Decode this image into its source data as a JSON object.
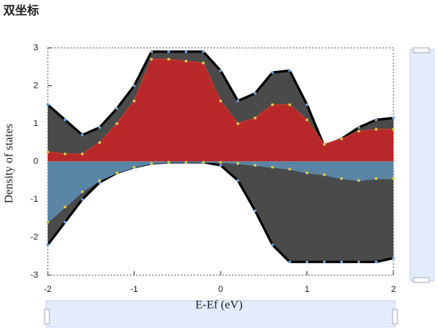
{
  "chart_data": {
    "type": "area",
    "title": "双坐标",
    "x_label": "E-Ef (eV)",
    "y_label": "Density of states",
    "x": [
      -2,
      -1.8,
      -1.6,
      -1.4,
      -1.2,
      -1,
      -0.8,
      -0.6,
      -0.4,
      -0.2,
      0,
      0.2,
      0.4,
      0.6,
      0.8,
      1,
      1.2,
      1.4,
      1.6,
      1.8,
      2
    ],
    "series": [
      {
        "color": "#4a4a4a",
        "line_color": "#000000",
        "marker_color": "#6f9fd8",
        "values": [
          1.5,
          1.1,
          0.7,
          0.9,
          1.4,
          2.0,
          2.9,
          2.9,
          2.9,
          2.9,
          2.4,
          1.6,
          1.8,
          2.35,
          2.4,
          1.5,
          0.4,
          0.6,
          0.9,
          1.1,
          1.15
        ]
      },
      {
        "color": "#b8282a",
        "line_color": "#c0392b",
        "marker_color": "#d8c850",
        "values": [
          0.25,
          0.2,
          0.2,
          0.5,
          1.0,
          1.6,
          2.7,
          2.7,
          2.65,
          2.6,
          1.6,
          1.0,
          1.15,
          1.5,
          1.5,
          1.1,
          0.45,
          0.6,
          0.8,
          0.85,
          0.85
        ]
      },
      {
        "color": "#4a4a4a",
        "line_color": "#000000",
        "marker_color": "#6f9fd8",
        "values": [
          -2.2,
          -1.6,
          -1.0,
          -0.55,
          -0.3,
          -0.15,
          -0.05,
          -0.02,
          -0.02,
          -0.02,
          -0.1,
          -0.5,
          -1.3,
          -2.2,
          -2.65,
          -2.65,
          -2.65,
          -2.65,
          -2.65,
          -2.65,
          -2.55
        ]
      },
      {
        "color": "#5a85a5",
        "line_color": "#5a85a5",
        "marker_color": "#d8c850",
        "values": [
          -1.6,
          -1.2,
          -0.8,
          -0.5,
          -0.3,
          -0.15,
          -0.05,
          -0.02,
          -0.02,
          -0.02,
          -0.02,
          -0.05,
          -0.1,
          -0.15,
          -0.2,
          -0.3,
          -0.35,
          -0.45,
          -0.5,
          -0.45,
          -0.45
        ]
      }
    ],
    "xlim": [
      -2,
      2
    ],
    "xticks": [
      -2,
      -1,
      0,
      1,
      2
    ],
    "ylim": [
      -3,
      3
    ],
    "yticks": [
      -3,
      -2,
      -1,
      0,
      1,
      2,
      3
    ]
  }
}
